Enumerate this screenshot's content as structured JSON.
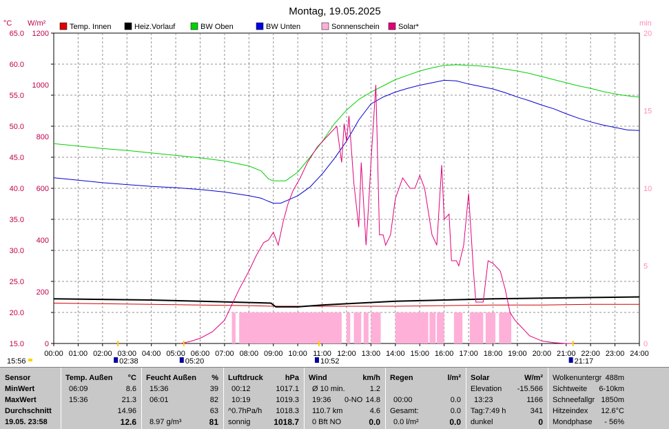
{
  "chart_data": {
    "type": "line",
    "title": "Montag, 19.05.2025",
    "left_axis_temp_unit": "°C",
    "left_axis_solar_unit": "W/m²",
    "right_axis_unit": "min",
    "left_temp_ticks": [
      "65.0",
      "60.0",
      "55.0",
      "50.0",
      "45.0",
      "40.0",
      "35.0",
      "30.0",
      "25.0",
      "20.0",
      "15.0"
    ],
    "left_temp_range": [
      15,
      65
    ],
    "left_solar_ticks": [
      "1200",
      "1000",
      "800",
      "600",
      "400",
      "200",
      "0"
    ],
    "left_solar_range": [
      0,
      1200
    ],
    "right_ticks": [
      "20",
      "15",
      "10",
      "5",
      "0"
    ],
    "right_range": [
      0,
      20
    ],
    "x_ticks": [
      "00:00",
      "01:00",
      "02:00",
      "03:00",
      "04:00",
      "05:00",
      "06:00",
      "07:00",
      "08:00",
      "09:00",
      "10:00",
      "11:00",
      "12:00",
      "13:00",
      "14:00",
      "15:00",
      "16:00",
      "17:00",
      "18:00",
      "19:00",
      "20:00",
      "21:00",
      "22:00",
      "23:00",
      "24:00"
    ],
    "x_range_hours": [
      0,
      24
    ],
    "grid": true,
    "legend": [
      {
        "name": "Temp. Innen",
        "color": "#e00000"
      },
      {
        "name": "Heiz.Vorlauf",
        "color": "#000000"
      },
      {
        "name": "BW Oben",
        "color": "#00d000"
      },
      {
        "name": "BW Unten",
        "color": "#0000e0"
      },
      {
        "name": "Sonnenschein",
        "color": "#ffb0d8"
      },
      {
        "name": "Solar*",
        "color": "#e0007a"
      }
    ],
    "series": [
      {
        "name": "Temp. Innen",
        "axis": "temp",
        "color": "#d00000",
        "x": [
          0,
          2,
          4,
          6,
          8,
          9,
          10,
          12,
          14,
          16,
          18,
          20,
          22,
          24
        ],
        "y": [
          21.5,
          21.4,
          21.3,
          21.2,
          21.1,
          21.0,
          21.0,
          21.0,
          21.0,
          21.1,
          21.2,
          21.2,
          21.3,
          21.3
        ]
      },
      {
        "name": "Heiz.Vorlauf",
        "axis": "temp",
        "color": "#000000",
        "x": [
          0,
          2,
          4,
          6,
          8,
          8.9,
          9.1,
          10,
          11,
          12,
          14,
          16,
          18,
          20,
          22,
          24
        ],
        "y": [
          22.2,
          22.1,
          22.0,
          21.8,
          21.6,
          21.5,
          20.9,
          20.9,
          21.2,
          21.4,
          21.8,
          22.0,
          22.2,
          22.3,
          22.4,
          22.5
        ]
      },
      {
        "name": "BW Oben",
        "axis": "temp",
        "color": "#00d000",
        "x": [
          0,
          1,
          2,
          3,
          4,
          5,
          6,
          7,
          8,
          8.5,
          8.8,
          9,
          9.5,
          10,
          10.5,
          11,
          11.5,
          12,
          12.5,
          13,
          13.5,
          14,
          14.5,
          15,
          15.5,
          16,
          16.5,
          17,
          17.5,
          18,
          18.5,
          19,
          19.5,
          20,
          20.5,
          21,
          21.5,
          22,
          22.5,
          23,
          23.5,
          24
        ],
        "y": [
          47.2,
          46.8,
          46.4,
          46.1,
          45.7,
          45.3,
          44.9,
          44.4,
          43.6,
          42.8,
          41.5,
          41.2,
          41.2,
          42.6,
          45.0,
          47.5,
          50.4,
          52.6,
          54.3,
          55.5,
          56.5,
          57.5,
          58.2,
          58.9,
          59.4,
          59.8,
          59.9,
          59.8,
          59.7,
          59.5,
          59.2,
          58.9,
          58.5,
          58.0,
          57.5,
          57.0,
          56.5,
          56.1,
          55.6,
          55.2,
          54.9,
          54.7
        ]
      },
      {
        "name": "BW Unten",
        "axis": "temp",
        "color": "#0000d0",
        "x": [
          0,
          1,
          2,
          3,
          4,
          5,
          6,
          7,
          8,
          8.5,
          8.8,
          9,
          9.3,
          9.6,
          10,
          10.5,
          11,
          11.5,
          12,
          12.5,
          13,
          13.5,
          14,
          14.5,
          15,
          15.5,
          16,
          16.5,
          17,
          17.5,
          18,
          18.5,
          19,
          19.5,
          20,
          20.5,
          21,
          21.5,
          22,
          22.5,
          23,
          23.5,
          24
        ],
        "y": [
          41.7,
          41.3,
          40.9,
          40.6,
          40.3,
          40.1,
          39.8,
          39.4,
          38.8,
          38.4,
          37.9,
          37.6,
          37.6,
          38.1,
          38.8,
          40.2,
          42.3,
          44.8,
          47.6,
          51.0,
          53.6,
          54.7,
          55.5,
          56.1,
          56.6,
          57.0,
          57.4,
          57.3,
          56.8,
          56.4,
          56.0,
          55.4,
          54.7,
          54.1,
          53.4,
          52.8,
          52.0,
          51.3,
          50.7,
          50.2,
          49.8,
          49.4,
          49.3
        ]
      },
      {
        "name": "Solar*",
        "axis": "solar",
        "color": "#e0007a",
        "x": [
          5.2,
          5.6,
          6.0,
          6.5,
          7.0,
          7.3,
          7.6,
          8.0,
          8.3,
          8.6,
          8.8,
          9.0,
          9.2,
          9.4,
          9.6,
          9.8,
          10.1,
          10.4,
          10.8,
          11.2,
          11.6,
          11.8,
          11.9,
          12.0,
          12.1,
          12.3,
          12.5,
          12.6,
          12.8,
          12.9,
          13.0,
          13.2,
          13.35,
          13.5,
          13.6,
          13.8,
          14.0,
          14.3,
          14.6,
          14.8,
          15.0,
          15.2,
          15.5,
          15.7,
          15.9,
          16.0,
          16.2,
          16.3,
          16.5,
          16.6,
          16.8,
          17.0,
          17.2,
          17.3,
          17.6,
          17.8,
          18.0,
          18.3,
          18.5,
          18.7,
          18.9,
          19.2,
          19.5,
          20.0,
          20.5,
          21.0,
          21.3
        ],
        "y": [
          0,
          8,
          20,
          45,
          90,
          150,
          210,
          280,
          340,
          390,
          400,
          430,
          380,
          470,
          540,
          590,
          640,
          700,
          760,
          800,
          840,
          700,
          850,
          780,
          880,
          620,
          450,
          700,
          380,
          530,
          700,
          1000,
          420,
          420,
          380,
          420,
          560,
          640,
          600,
          600,
          650,
          600,
          420,
          380,
          690,
          480,
          500,
          320,
          320,
          300,
          380,
          580,
          280,
          160,
          160,
          320,
          310,
          280,
          210,
          120,
          90,
          60,
          30,
          10,
          3,
          0,
          0
        ]
      }
    ],
    "sunshine_bars": [
      [
        7.3,
        7.45
      ],
      [
        7.6,
        11.8
      ],
      [
        12.0,
        12.15
      ],
      [
        12.3,
        12.6
      ],
      [
        12.7,
        12.9
      ],
      [
        13.0,
        13.4
      ],
      [
        14.0,
        15.35
      ],
      [
        15.4,
        15.65
      ],
      [
        15.7,
        16.0
      ],
      [
        16.4,
        16.75
      ],
      [
        17.05,
        17.6
      ],
      [
        17.7,
        18.1
      ],
      [
        18.25,
        18.75
      ]
    ],
    "markers": [
      {
        "label": "15:56",
        "side": "left"
      },
      {
        "label": "02:38",
        "hour": 2.63
      },
      {
        "label": "05:20",
        "hour": 5.33
      },
      {
        "label": "10:52",
        "hour": 10.87
      },
      {
        "label": "21:17",
        "hour": 21.28
      }
    ]
  },
  "stats": {
    "sensor": {
      "header": "Sensor",
      "min": "MinWert",
      "max": "MaxWert",
      "avg": "Durchschnitt",
      "date": "19.05. 23:58"
    },
    "temp": {
      "header": "Temp. Außen",
      "unit": "°C",
      "min_time": "06:09",
      "min": "8.6",
      "max_time": "15:36",
      "max": "21.3",
      "avg": "14.96",
      "cur": "12.6"
    },
    "humid": {
      "header": "Feucht Außen",
      "unit": "%",
      "min_time": "15:36",
      "min": "39",
      "max_time": "06:01",
      "max": "82",
      "avg": "63",
      "abs": "8.97 g/m³",
      "cur": "81"
    },
    "pressure": {
      "header": "Luftdruck",
      "unit": "hPa",
      "min_time": "00:12",
      "min": "1017.1",
      "max_time": "10:19",
      "max": "1019.3",
      "trend_label": "^0.7hPa/h",
      "trend": "1018.3",
      "weather": "sonnig",
      "cur": "1018.7"
    },
    "wind": {
      "header": "Wind",
      "unit": "km/h",
      "avg_label": "Ø 10 min.",
      "avg": "1.2",
      "gust_time": "19:36",
      "gust_dir": "0-NO",
      "gust": "14.8",
      "dist": "110.7 km",
      "dist_val": "4.6",
      "bft": "0 Bft NO",
      "cur": "0.0"
    },
    "rain": {
      "header": "Regen",
      "unit": "l/m²",
      "time": "00:00",
      "val1": "0.0",
      "total_label": "Gesamt:",
      "total": "0.0",
      "rate": "0.0 l/m²",
      "cur": "0.0"
    },
    "solar": {
      "header": "Solar",
      "unit": "W/m²",
      "elev_label": "Elevation",
      "elev": "-15.566",
      "max_time": "13:23",
      "max": "1166",
      "day_label": "Tag:7:49 h",
      "day": "341",
      "dark": "dunkel",
      "cur": "0"
    },
    "extra": [
      {
        "label": "Wolkenuntergr",
        "value": "488m"
      },
      {
        "label": "Sichtweite",
        "value": "6-10km"
      },
      {
        "label": "Schneefallgr",
        "value": "1850m"
      },
      {
        "label": "Hitzeindex",
        "value": "12.6°C"
      },
      {
        "label": "Mondphase",
        "value": "- 56%"
      }
    ]
  }
}
